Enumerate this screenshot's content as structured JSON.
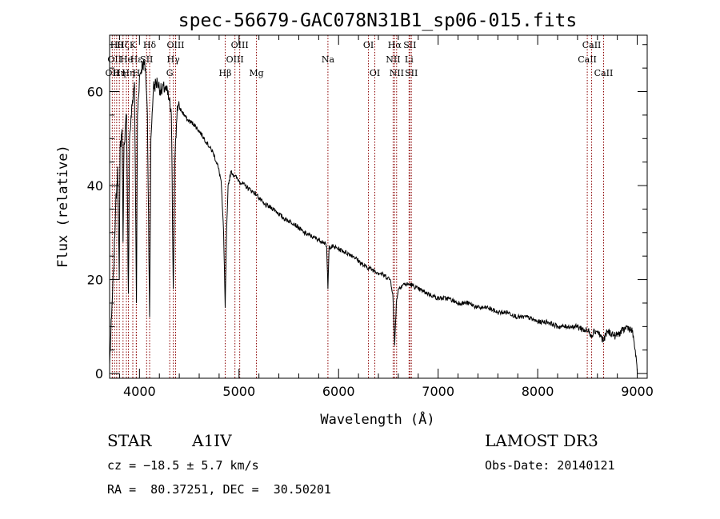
{
  "chart_data": {
    "type": "line",
    "title": "spec-56679-GAC078N31B1_sp06-015.fits",
    "xlabel": "Wavelength (Å)",
    "ylabel": "Flux (relative)",
    "xlim": [
      3700,
      9100
    ],
    "ylim": [
      -1,
      72
    ],
    "xticks": [
      4000,
      5000,
      6000,
      7000,
      8000,
      9000
    ],
    "yticks": [
      0,
      20,
      40,
      60
    ],
    "xtick_labels": [
      "4000",
      "5000",
      "6000",
      "7000",
      "8000",
      "9000"
    ],
    "ytick_labels": [
      "0",
      "20",
      "40",
      "60"
    ],
    "series": [
      {
        "name": "flux",
        "points": [
          [
            3700,
            2
          ],
          [
            3720,
            12
          ],
          [
            3740,
            22
          ],
          [
            3760,
            35
          ],
          [
            3780,
            44
          ],
          [
            3790,
            30
          ],
          [
            3797,
            20
          ],
          [
            3805,
            48
          ],
          [
            3825,
            52
          ],
          [
            3835,
            28
          ],
          [
            3845,
            49
          ],
          [
            3870,
            55
          ],
          [
            3889,
            17
          ],
          [
            3900,
            50
          ],
          [
            3930,
            58
          ],
          [
            3950,
            62
          ],
          [
            3970,
            15
          ],
          [
            3980,
            55
          ],
          [
            4000,
            63
          ],
          [
            4030,
            66
          ],
          [
            4060,
            65
          ],
          [
            4080,
            55
          ],
          [
            4102,
            12
          ],
          [
            4115,
            50
          ],
          [
            4140,
            61
          ],
          [
            4180,
            62
          ],
          [
            4220,
            60
          ],
          [
            4260,
            61
          ],
          [
            4300,
            58
          ],
          [
            4320,
            55
          ],
          [
            4340,
            18
          ],
          [
            4355,
            45
          ],
          [
            4380,
            57
          ],
          [
            4420,
            56
          ],
          [
            4480,
            54
          ],
          [
            4550,
            53
          ],
          [
            4620,
            51
          ],
          [
            4680,
            49
          ],
          [
            4740,
            47
          ],
          [
            4790,
            44
          ],
          [
            4820,
            41
          ],
          [
            4845,
            30
          ],
          [
            4861,
            14
          ],
          [
            4875,
            30
          ],
          [
            4890,
            40
          ],
          [
            4920,
            43
          ],
          [
            4960,
            42
          ],
          [
            5000,
            41
          ],
          [
            5060,
            40
          ],
          [
            5120,
            39
          ],
          [
            5180,
            38
          ],
          [
            5250,
            36
          ],
          [
            5350,
            35
          ],
          [
            5450,
            33
          ],
          [
            5550,
            32
          ],
          [
            5650,
            30
          ],
          [
            5750,
            29
          ],
          [
            5850,
            28
          ],
          [
            5880,
            27
          ],
          [
            5893,
            18
          ],
          [
            5905,
            27
          ],
          [
            5950,
            27
          ],
          [
            6050,
            26
          ],
          [
            6150,
            25
          ],
          [
            6250,
            23
          ],
          [
            6350,
            22
          ],
          [
            6450,
            21
          ],
          [
            6520,
            20
          ],
          [
            6545,
            17
          ],
          [
            6563,
            6
          ],
          [
            6580,
            15
          ],
          [
            6600,
            18
          ],
          [
            6650,
            19
          ],
          [
            6720,
            19
          ],
          [
            6800,
            18
          ],
          [
            6900,
            17
          ],
          [
            7000,
            16
          ],
          [
            7100,
            16
          ],
          [
            7200,
            15
          ],
          [
            7300,
            15
          ],
          [
            7400,
            14
          ],
          [
            7500,
            14
          ],
          [
            7600,
            13
          ],
          [
            7700,
            13
          ],
          [
            7800,
            12
          ],
          [
            7900,
            12
          ],
          [
            8000,
            11
          ],
          [
            8100,
            11
          ],
          [
            8200,
            10
          ],
          [
            8300,
            10
          ],
          [
            8400,
            10
          ],
          [
            8498,
            9
          ],
          [
            8520,
            9
          ],
          [
            8542,
            8
          ],
          [
            8560,
            9
          ],
          [
            8600,
            9
          ],
          [
            8662,
            7
          ],
          [
            8700,
            9
          ],
          [
            8780,
            8
          ],
          [
            8850,
            9
          ],
          [
            8900,
            10
          ],
          [
            8950,
            9
          ],
          [
            8980,
            5
          ],
          [
            9000,
            0
          ]
        ]
      }
    ],
    "line_markers": [
      {
        "w": 3727,
        "label": "OII",
        "row": 2
      },
      {
        "w": 3750,
        "label": "OII",
        "row": 1
      },
      {
        "w": 3771,
        "label": "Hθ",
        "row": 0
      },
      {
        "w": 3798,
        "label": "Hη",
        "row": 2
      },
      {
        "w": 3835,
        "label": "Hζ",
        "row": 0
      },
      {
        "w": 3869,
        "label": "He",
        "row": 1
      },
      {
        "w": 3889,
        "label": "Hη",
        "row": 2
      },
      {
        "w": 3933,
        "label": "K",
        "row": 0
      },
      {
        "w": 3968,
        "label": "Hε",
        "row": 1
      },
      {
        "w": 3969,
        "label": "H",
        "row": 2
      },
      {
        "w": 4072,
        "label": "SII",
        "row": 1
      },
      {
        "w": 4102,
        "label": "Hδ",
        "row": 0
      },
      {
        "w": 4304,
        "label": "G",
        "row": 2
      },
      {
        "w": 4340,
        "label": "Hγ",
        "row": 1
      },
      {
        "w": 4363,
        "label": "OIII",
        "row": 0
      },
      {
        "w": 4861,
        "label": "Hβ",
        "row": 2
      },
      {
        "w": 4959,
        "label": "OIII",
        "row": 1
      },
      {
        "w": 5007,
        "label": "OIII",
        "row": 0
      },
      {
        "w": 5175,
        "label": "Mg",
        "row": 2
      },
      {
        "w": 5893,
        "label": "Na",
        "row": 1
      },
      {
        "w": 6300,
        "label": "OI",
        "row": 0
      },
      {
        "w": 6364,
        "label": "OI",
        "row": 2
      },
      {
        "w": 6548,
        "label": "NII",
        "row": 1
      },
      {
        "w": 6563,
        "label": "Hα",
        "row": 0
      },
      {
        "w": 6583,
        "label": "NII",
        "row": 2
      },
      {
        "w": 6708,
        "label": "Li",
        "row": 1
      },
      {
        "w": 6716,
        "label": "SII",
        "row": 0
      },
      {
        "w": 6731,
        "label": "SII",
        "row": 2
      },
      {
        "w": 8498,
        "label": "CaII",
        "row": 1
      },
      {
        "w": 8542,
        "label": "CaII",
        "row": 0
      },
      {
        "w": 8662,
        "label": "CaII",
        "row": 2
      }
    ],
    "line_color": "#8b0000"
  },
  "info": {
    "class": "STAR",
    "subclass": "A1IV",
    "survey": "LAMOST DR3",
    "cz": "cz = −18.5 ± 5.7 km/s",
    "obs_date": "Obs-Date: 20140121",
    "coords": "RA =  80.37251, DEC =  30.50201"
  }
}
